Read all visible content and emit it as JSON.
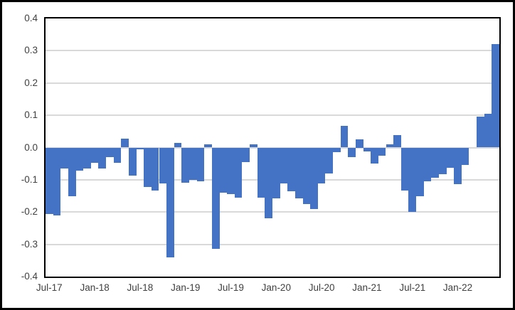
{
  "chart_data": {
    "type": "bar",
    "title": "",
    "xlabel": "",
    "ylabel": "",
    "ylim": [
      -0.4,
      0.4
    ],
    "grid": true,
    "legend": "none",
    "bar_color": "#4472c4",
    "gridline_color": "#d9d9d9",
    "axis_text_color": "#404040",
    "plot_border_color": "#000000",
    "y_tick_labels": [
      "0.4",
      "0.3",
      "0.2",
      "0.1",
      "0.0",
      "-0.1",
      "-0.2",
      "-0.3",
      "-0.4"
    ],
    "y_tick_values": [
      0.4,
      0.3,
      0.2,
      0.1,
      0.0,
      -0.1,
      -0.2,
      -0.3,
      -0.4
    ],
    "x_tick_every": 6,
    "x_tick_labels": [
      "Jul-17",
      "Jan-18",
      "Jul-18",
      "Jan-19",
      "Jul-19",
      "Jan-20",
      "Jul-20",
      "Jan-21",
      "Jul-21",
      "Jan-22"
    ],
    "x": [
      "Jul-17",
      "Aug-17",
      "Sep-17",
      "Oct-17",
      "Nov-17",
      "Dec-17",
      "Jan-18",
      "Feb-18",
      "Mar-18",
      "Apr-18",
      "May-18",
      "Jun-18",
      "Jul-18",
      "Aug-18",
      "Sep-18",
      "Oct-18",
      "Nov-18",
      "Dec-18",
      "Jan-19",
      "Feb-19",
      "Mar-19",
      "Apr-19",
      "May-19",
      "Jun-19",
      "Jul-19",
      "Aug-19",
      "Sep-19",
      "Oct-19",
      "Nov-19",
      "Dec-19",
      "Jan-20",
      "Feb-20",
      "Mar-20",
      "Apr-20",
      "May-20",
      "Jun-20",
      "Jul-20",
      "Aug-20",
      "Sep-20",
      "Oct-20",
      "Nov-20",
      "Dec-20",
      "Jan-21",
      "Feb-21",
      "Mar-21",
      "Apr-21",
      "May-21",
      "Jun-21",
      "Jul-21",
      "Aug-21",
      "Sep-21",
      "Oct-21",
      "Nov-21",
      "Dec-21",
      "Jan-22",
      "Feb-22",
      "Mar-22",
      "Apr-22",
      "May-22",
      "Jun-22"
    ],
    "values": [
      -0.205,
      -0.21,
      -0.065,
      -0.15,
      -0.072,
      -0.066,
      -0.047,
      -0.066,
      -0.029,
      -0.048,
      0.027,
      -0.086,
      -0.006,
      -0.123,
      -0.134,
      -0.112,
      -0.34,
      0.015,
      -0.11,
      -0.1,
      -0.105,
      0.01,
      -0.315,
      -0.14,
      -0.145,
      -0.155,
      -0.045,
      0.01,
      -0.155,
      -0.22,
      -0.158,
      -0.111,
      -0.135,
      -0.158,
      -0.175,
      -0.191,
      -0.111,
      -0.08,
      -0.015,
      0.068,
      -0.03,
      0.025,
      -0.012,
      -0.05,
      -0.025,
      0.01,
      0.038,
      -0.133,
      -0.2,
      -0.15,
      -0.105,
      -0.094,
      -0.083,
      -0.063,
      -0.114,
      -0.055,
      0.0,
      0.095,
      0.105,
      0.32
    ]
  }
}
